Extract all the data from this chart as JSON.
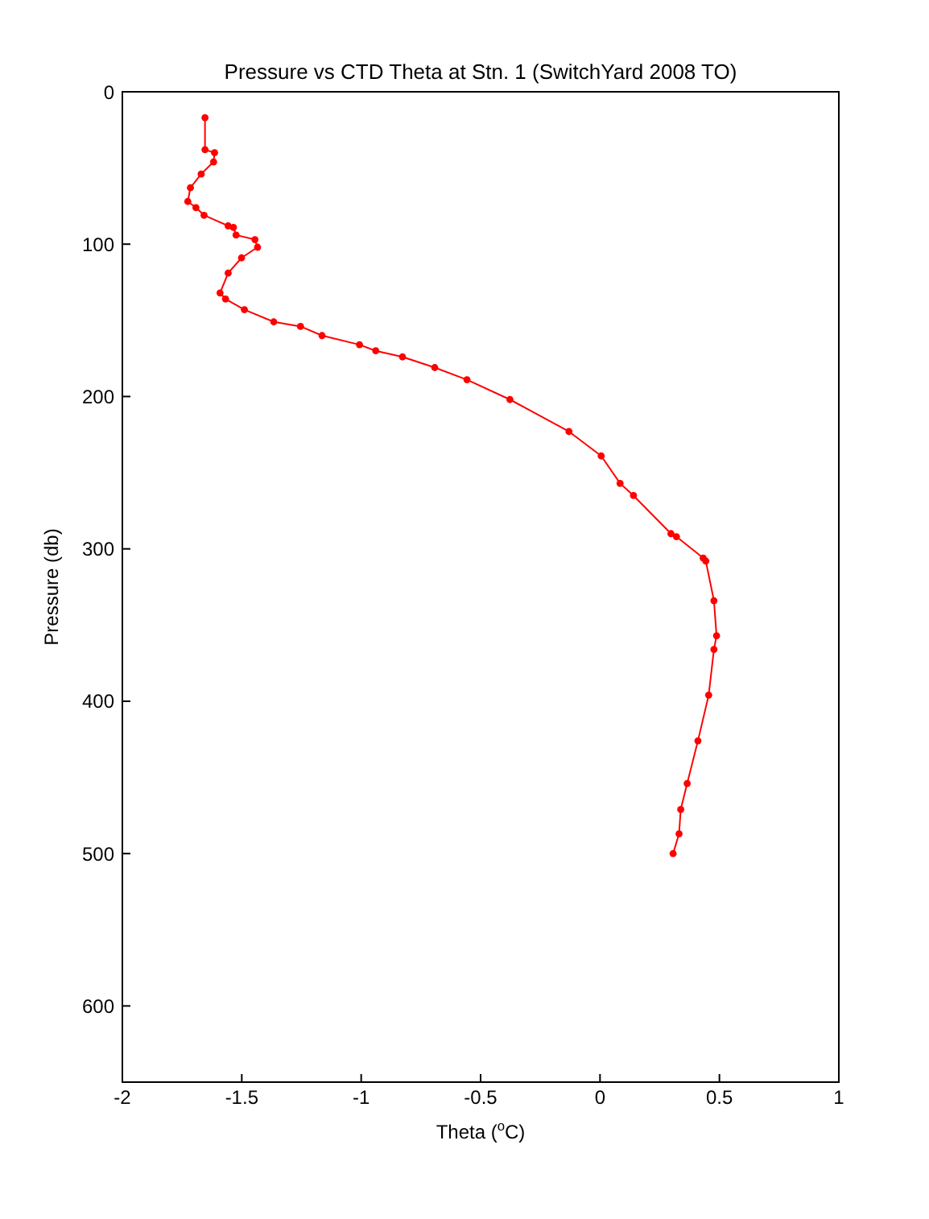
{
  "chart_data": {
    "type": "line",
    "title": "Pressure vs CTD Theta at Stn. 1 (SwitchYard 2008 TO)",
    "xlabel": "Theta ($^{o}$C)",
    "ylabel": "Pressure (db)",
    "series": [
      {
        "color": "#ff0000",
        "x": [
          -1.654,
          -1.654,
          -1.614,
          -1.618,
          -1.67,
          -1.715,
          -1.726,
          -1.692,
          -1.658,
          -1.557,
          -1.535,
          -1.524,
          -1.445,
          -1.434,
          -1.501,
          -1.557,
          -1.591,
          -1.568,
          -1.489,
          -1.366,
          -1.254,
          -1.164,
          -1.007,
          -0.939,
          -0.827,
          -0.692,
          -0.557,
          -0.377,
          -0.13,
          0.005,
          0.084,
          0.14,
          0.297,
          0.32,
          0.432,
          0.443,
          0.477,
          0.488,
          0.477,
          0.455,
          0.41,
          0.365,
          0.338,
          0.331,
          0.306
        ],
        "values": [
          17,
          38,
          40,
          46,
          54,
          63,
          72,
          76,
          81,
          88,
          89,
          94,
          97,
          102,
          109,
          119,
          132,
          136,
          143,
          151,
          154,
          160,
          166,
          170,
          174,
          181,
          189,
          202,
          223,
          239,
          257,
          265,
          290,
          292,
          306,
          308,
          334,
          357,
          366,
          396,
          426,
          454,
          471,
          487,
          500
        ]
      }
    ],
    "xlim": [
      -2,
      1
    ],
    "xticks": [
      -2,
      -1.5,
      -1,
      -0.5,
      0,
      0.5,
      1
    ],
    "ylim": [
      650,
      0
    ],
    "yticks": [
      0,
      100,
      200,
      300,
      400,
      500,
      600
    ],
    "marker": "circle",
    "line_style": "solid"
  }
}
